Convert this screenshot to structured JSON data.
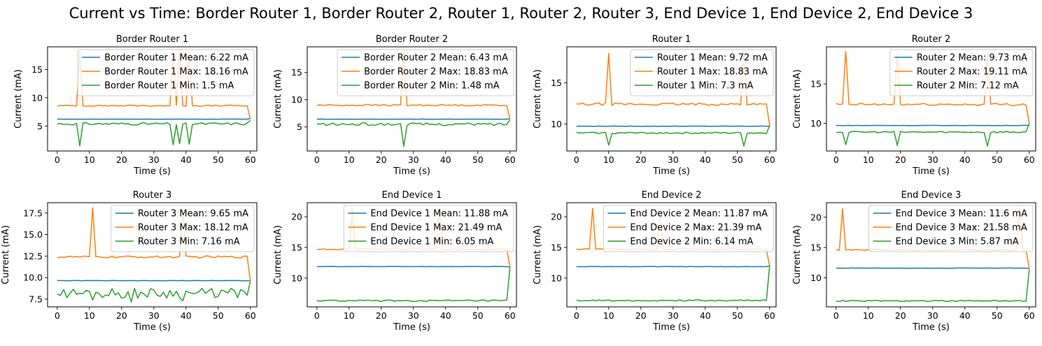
{
  "figure": {
    "title": "Current vs Time: Border Router 1, Border Router 2, Router 1, Router 2, Router 3, End Device 1, End Device 2, End Device 3"
  },
  "colors": {
    "mean": "#1f77b4",
    "max": "#ff7f0e",
    "min": "#2ca02c"
  },
  "chart_data": [
    {
      "type": "line",
      "title": "Border Router 1",
      "xlabel": "Time (s)",
      "ylabel": "Current (mA)",
      "xlim": [
        -3,
        62
      ],
      "ylim": [
        0.6,
        19.0
      ],
      "xticks": [
        0,
        10,
        20,
        30,
        40,
        50,
        60
      ],
      "yticks": [
        5,
        10,
        15
      ],
      "legend_position": "upper right",
      "series": [
        {
          "name": "Border Router 1 Mean: 6.22 mA",
          "role": "mean",
          "level": 6.22,
          "end": 6.3
        },
        {
          "name": "Border Router 1 Max: 18.16 mA",
          "role": "max",
          "level": 8.6,
          "jitter": 0.1,
          "spikes": [
            [
              7,
              18.16
            ],
            [
              36,
              18.1
            ],
            [
              38,
              18.0
            ],
            [
              41,
              18.0
            ]
          ],
          "end": 6.2
        },
        {
          "name": "Border Router 1 Min: 1.5 mA",
          "role": "min",
          "level": 5.4,
          "jitter": 0.2,
          "dips": [
            [
              7,
              1.5
            ],
            [
              36,
              1.7
            ],
            [
              38,
              1.9
            ],
            [
              41,
              1.8
            ]
          ],
          "end": 6.0
        }
      ]
    },
    {
      "type": "line",
      "title": "Border Router 2",
      "xlabel": "Time (s)",
      "ylabel": "Current (mA)",
      "xlim": [
        -3,
        62
      ],
      "ylim": [
        0.6,
        19.7
      ],
      "xticks": [
        0,
        10,
        20,
        30,
        40,
        50,
        60
      ],
      "yticks": [
        5,
        10,
        15
      ],
      "legend_position": "upper right",
      "series": [
        {
          "name": "Border Router 2 Mean: 6.43 mA",
          "role": "mean",
          "level": 6.43,
          "end": 6.5
        },
        {
          "name": "Border Router 2 Max: 18.83 mA",
          "role": "max",
          "level": 9.0,
          "jitter": 0.15,
          "spikes": [
            [
              27,
              18.83
            ]
          ],
          "end": 6.4
        },
        {
          "name": "Border Router 2 Min: 1.48 mA",
          "role": "min",
          "level": 5.5,
          "jitter": 0.25,
          "dips": [
            [
              27,
              1.48
            ]
          ],
          "end": 6.3
        }
      ]
    },
    {
      "type": "line",
      "title": "Router 1",
      "xlabel": "Time (s)",
      "ylabel": "Current (mA)",
      "xlim": [
        -3,
        62
      ],
      "ylim": [
        6.7,
        19.4
      ],
      "xticks": [
        0,
        10,
        20,
        30,
        40,
        50,
        60
      ],
      "yticks": [
        10,
        15
      ],
      "legend_position": "upper right",
      "series": [
        {
          "name": "Router 1 Mean: 9.72 mA",
          "role": "mean",
          "level": 9.72,
          "end": 9.75
        },
        {
          "name": "Router 1 Max: 18.83 mA",
          "role": "max",
          "level": 12.4,
          "jitter": 0.15,
          "spikes": [
            [
              10,
              18.6
            ],
            [
              52,
              18.83
            ]
          ],
          "end": 9.8
        },
        {
          "name": "Router 1 Min: 7.3 mA",
          "role": "min",
          "level": 8.9,
          "jitter": 0.1,
          "dips": [
            [
              10,
              7.4
            ],
            [
              52,
              7.3
            ]
          ],
          "end": 9.8
        }
      ]
    },
    {
      "type": "line",
      "title": "Router 2",
      "xlabel": "Time (s)",
      "ylabel": "Current (mA)",
      "xlim": [
        -3,
        62
      ],
      "ylim": [
        6.5,
        19.7
      ],
      "xticks": [
        0,
        10,
        20,
        30,
        40,
        50,
        60
      ],
      "yticks": [
        10,
        15
      ],
      "legend_position": "upper right",
      "series": [
        {
          "name": "Router 2 Mean: 9.73 mA",
          "role": "mean",
          "level": 9.73,
          "end": 9.75
        },
        {
          "name": "Router 2 Max: 19.11 mA",
          "role": "max",
          "level": 12.4,
          "jitter": 0.15,
          "spikes": [
            [
              3,
              19.11
            ],
            [
              19,
              18.8
            ],
            [
              47,
              18.9
            ]
          ],
          "end": 10.0
        },
        {
          "name": "Router 2 Min: 7.12 mA",
          "role": "min",
          "level": 8.9,
          "jitter": 0.1,
          "dips": [
            [
              3,
              7.3
            ],
            [
              19,
              7.2
            ],
            [
              47,
              7.12
            ]
          ],
          "end": 10.0
        }
      ]
    },
    {
      "type": "line",
      "title": "Router 3",
      "xlabel": "Time (s)",
      "ylabel": "Current (mA)",
      "xlim": [
        -3,
        62
      ],
      "ylim": [
        6.6,
        18.7
      ],
      "xticks": [
        0,
        10,
        20,
        30,
        40,
        50,
        60
      ],
      "yticks": [
        7.5,
        10.0,
        12.5,
        15.0,
        17.5
      ],
      "legend_position": "upper right",
      "series": [
        {
          "name": "Router 3 Mean: 9.65 mA",
          "role": "mean",
          "level": 9.65,
          "end": 9.65
        },
        {
          "name": "Router 3 Max: 18.12 mA",
          "role": "max",
          "level": 12.4,
          "jitter": 0.12,
          "spikes": [
            [
              11,
              18.12
            ],
            [
              39,
              17.9
            ]
          ],
          "end": 9.6
        },
        {
          "name": "Router 3 Min: 7.16 mA",
          "role": "min",
          "level": 8.2,
          "jitter": 0.6,
          "dips": [
            [
              11,
              7.4
            ],
            [
              23,
              7.16
            ],
            [
              39,
              7.3
            ]
          ],
          "end": 9.6
        }
      ]
    },
    {
      "type": "line",
      "title": "End Device 1",
      "xlabel": "Time (s)",
      "ylabel": "Current (mA)",
      "xlim": [
        -3,
        62
      ],
      "ylim": [
        5.3,
        22.3
      ],
      "xticks": [
        0,
        10,
        20,
        30,
        40,
        50,
        60
      ],
      "yticks": [
        10,
        15,
        20
      ],
      "legend_position": "upper right",
      "series": [
        {
          "name": "End Device 1 Mean: 11.88 mA",
          "role": "mean",
          "level": 11.88,
          "end": 11.8
        },
        {
          "name": "End Device 1 Max: 21.49 mA",
          "role": "max",
          "level": 14.7,
          "jitter": 0.1,
          "spikes": [
            [
              11,
              21.3
            ],
            [
              38,
              21.49
            ]
          ],
          "end": 11.8
        },
        {
          "name": "End Device 1 Min: 6.05 mA",
          "role": "min",
          "level": 6.3,
          "jitter": 0.12,
          "dips": [],
          "end": 11.8
        }
      ]
    },
    {
      "type": "line",
      "title": "End Device 2",
      "xlabel": "Time (s)",
      "ylabel": "Current (mA)",
      "xlim": [
        -3,
        62
      ],
      "ylim": [
        5.3,
        22.3
      ],
      "xticks": [
        0,
        10,
        20,
        30,
        40,
        50,
        60
      ],
      "yticks": [
        10,
        15,
        20
      ],
      "legend_position": "upper right",
      "series": [
        {
          "name": "End Device 2 Mean: 11.87 mA",
          "role": "mean",
          "level": 11.87,
          "end": 12.0
        },
        {
          "name": "End Device 2 Max: 21.39 mA",
          "role": "max",
          "level": 14.7,
          "jitter": 0.1,
          "spikes": [
            [
              5,
              21.39
            ],
            [
              26,
              21.2
            ]
          ],
          "end": 12.0
        },
        {
          "name": "End Device 2 Min: 6.14 mA",
          "role": "min",
          "level": 6.35,
          "jitter": 0.1,
          "dips": [],
          "end": 12.1
        }
      ]
    },
    {
      "type": "line",
      "title": "End Device 3",
      "xlabel": "Time (s)",
      "ylabel": "Current (mA)",
      "xlim": [
        -3,
        62
      ],
      "ylim": [
        5.2,
        22.4
      ],
      "xticks": [
        0,
        10,
        20,
        30,
        40,
        50,
        60
      ],
      "yticks": [
        10,
        15,
        20
      ],
      "legend_position": "upper right",
      "series": [
        {
          "name": "End Device 3 Mean: 11.6 mA",
          "role": "mean",
          "level": 11.6,
          "end": 11.5
        },
        {
          "name": "End Device 3 Max: 21.58 mA",
          "role": "max",
          "level": 14.6,
          "jitter": 0.1,
          "spikes": [
            [
              2,
              21.4
            ],
            [
              57,
              21.58
            ]
          ],
          "end": 11.5
        },
        {
          "name": "End Device 3 Min: 5.87 mA",
          "role": "min",
          "level": 6.2,
          "jitter": 0.1,
          "dips": [],
          "end": 11.4
        }
      ]
    }
  ]
}
